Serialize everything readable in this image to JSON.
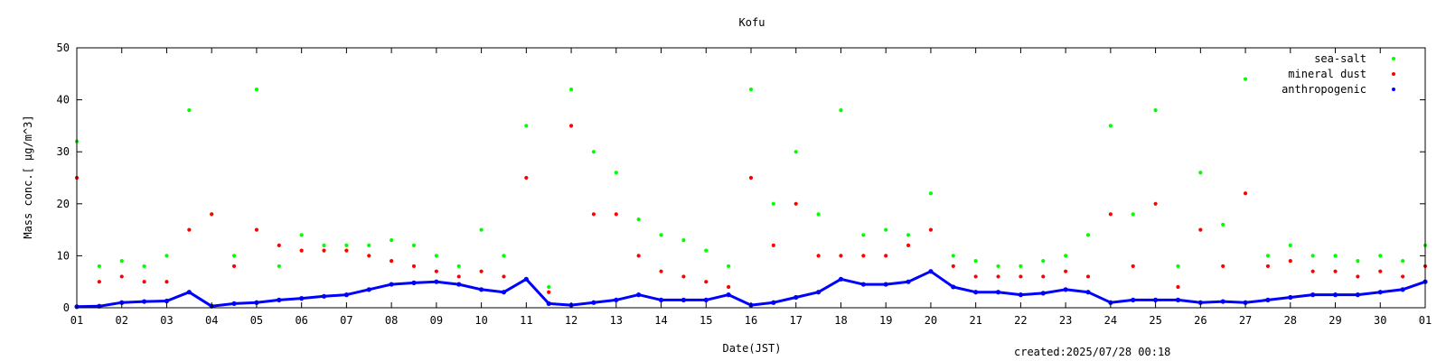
{
  "chart_data": {
    "type": "scatter",
    "title": "Kofu",
    "xlabel": "Date(JST)",
    "ylabel": "Mass conc.[ μg/m^3]",
    "ylim": [
      0,
      50
    ],
    "xlim": [
      1,
      31
    ],
    "x_ticks": [
      "01",
      "02",
      "03",
      "04",
      "05",
      "06",
      "07",
      "08",
      "09",
      "10",
      "11",
      "12",
      "13",
      "14",
      "15",
      "16",
      "17",
      "18",
      "19",
      "20",
      "21",
      "22",
      "23",
      "24",
      "25",
      "26",
      "27",
      "28",
      "29",
      "30",
      "01"
    ],
    "y_ticks": [
      "0",
      "10",
      "20",
      "30",
      "40",
      "50"
    ],
    "legend_position": "top-right",
    "grid": false,
    "series": [
      {
        "name": "sea-salt",
        "color": "#00ff00",
        "marker": "dot",
        "x": [
          1,
          1.5,
          2,
          2.5,
          3,
          3.5,
          4,
          4.5,
          5,
          5.5,
          6,
          6.5,
          7,
          7.5,
          8,
          8.5,
          9,
          9.5,
          10,
          10.5,
          11,
          11.5,
          12,
          12.5,
          13,
          13.5,
          14,
          14.5,
          15,
          15.5,
          16,
          16.5,
          17,
          17.5,
          18,
          18.5,
          19,
          19.5,
          20,
          20.5,
          21,
          21.5,
          22,
          22.5,
          23,
          23.5,
          24,
          24.5,
          25,
          25.5,
          26,
          26.5,
          27,
          27.5,
          28,
          28.5,
          29,
          29.5,
          30,
          30.5,
          31
        ],
        "values": [
          32,
          8,
          9,
          8,
          10,
          38,
          18,
          10,
          42,
          8,
          14,
          12,
          12,
          12,
          13,
          12,
          10,
          8,
          15,
          10,
          35,
          4,
          42,
          30,
          26,
          17,
          14,
          13,
          11,
          8,
          42,
          20,
          30,
          18,
          38,
          14,
          15,
          14,
          22,
          10,
          9,
          8,
          8,
          9,
          10,
          14,
          35,
          18,
          38,
          8,
          26,
          16,
          44,
          10,
          12,
          10,
          10,
          9,
          10,
          9,
          12
        ]
      },
      {
        "name": "mineral dust",
        "color": "#ff0000",
        "marker": "dot",
        "x": [
          1,
          1.5,
          2,
          2.5,
          3,
          3.5,
          4,
          4.5,
          5,
          5.5,
          6,
          6.5,
          7,
          7.5,
          8,
          8.5,
          9,
          9.5,
          10,
          10.5,
          11,
          11.5,
          12,
          12.5,
          13,
          13.5,
          14,
          14.5,
          15,
          15.5,
          16,
          16.5,
          17,
          17.5,
          18,
          18.5,
          19,
          19.5,
          20,
          20.5,
          21,
          21.5,
          22,
          22.5,
          23,
          23.5,
          24,
          24.5,
          25,
          25.5,
          26,
          26.5,
          27,
          27.5,
          28,
          28.5,
          29,
          29.5,
          30,
          30.5,
          31
        ],
        "values": [
          25,
          5,
          6,
          5,
          5,
          15,
          18,
          8,
          15,
          12,
          11,
          11,
          11,
          10,
          9,
          8,
          7,
          6,
          7,
          6,
          25,
          3,
          35,
          18,
          18,
          10,
          7,
          6,
          5,
          4,
          25,
          12,
          20,
          10,
          10,
          10,
          10,
          12,
          15,
          8,
          6,
          6,
          6,
          6,
          7,
          6,
          18,
          8,
          20,
          4,
          15,
          8,
          22,
          8,
          9,
          7,
          7,
          6,
          7,
          6,
          8
        ]
      },
      {
        "name": "anthropogenic",
        "color": "#0000ff",
        "marker": "dot",
        "x": [
          1,
          1.5,
          2,
          2.5,
          3,
          3.5,
          4,
          4.5,
          5,
          5.5,
          6,
          6.5,
          7,
          7.5,
          8,
          8.5,
          9,
          9.5,
          10,
          10.5,
          11,
          11.5,
          12,
          12.5,
          13,
          13.5,
          14,
          14.5,
          15,
          15.5,
          16,
          16.5,
          17,
          17.5,
          18,
          18.5,
          19,
          19.5,
          20,
          20.5,
          21,
          21.5,
          22,
          22.5,
          23,
          23.5,
          24,
          24.5,
          25,
          25.5,
          26,
          26.5,
          27,
          27.5,
          28,
          28.5,
          29,
          29.5,
          30,
          30.5,
          31
        ],
        "values": [
          0.2,
          0.3,
          1,
          1.2,
          1.3,
          3,
          0.3,
          0.8,
          1,
          1.5,
          1.8,
          2.2,
          2.5,
          3.5,
          4.5,
          4.8,
          5,
          4.5,
          3.5,
          3,
          5.5,
          0.8,
          0.5,
          1,
          1.5,
          2.5,
          1.5,
          1.5,
          1.5,
          2.5,
          0.5,
          1,
          2,
          3,
          5.5,
          4.5,
          4.5,
          5,
          7,
          4,
          3,
          3,
          2.5,
          2.8,
          3.5,
          3,
          1,
          1.5,
          1.5,
          1.5,
          1,
          1.2,
          1,
          1.5,
          2,
          2.5,
          2.5,
          2.5,
          3,
          3.5,
          5
        ]
      }
    ]
  },
  "footer": {
    "created": "created:2025/07/28 00:18"
  }
}
